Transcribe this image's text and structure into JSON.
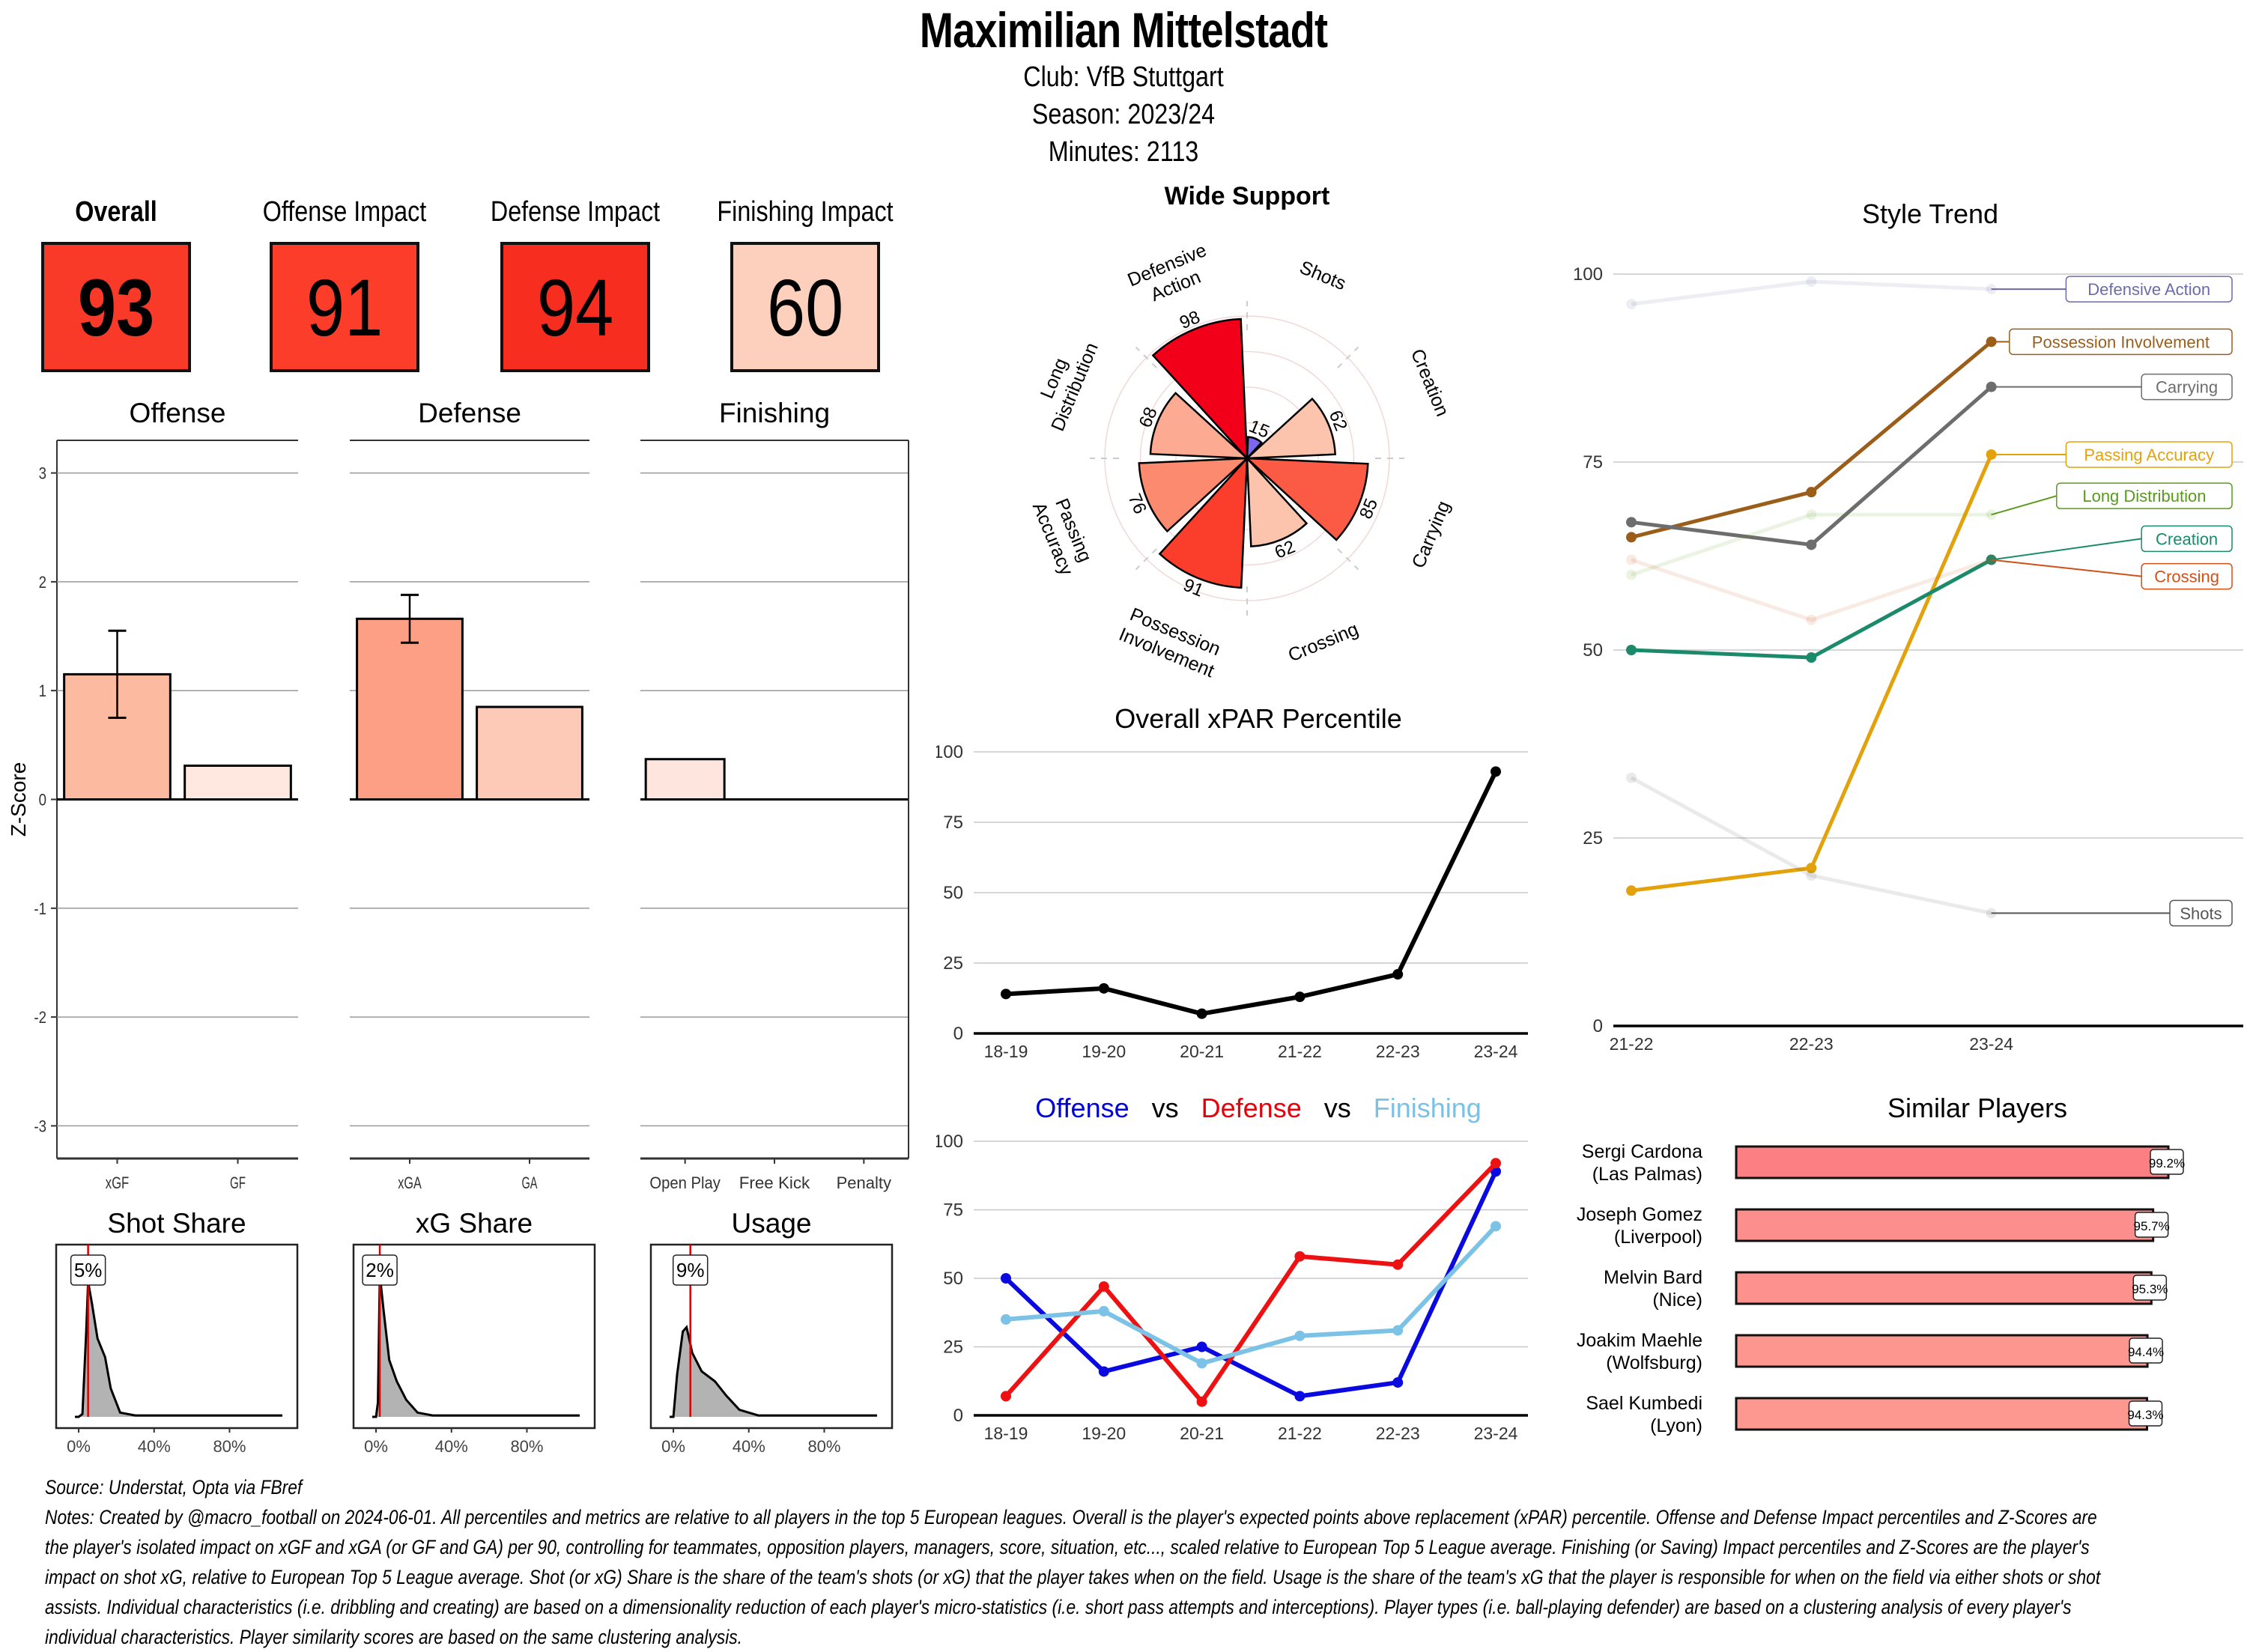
{
  "header": {
    "player_name": "Maximilian Mittelstadt",
    "club_line": "Club:  VfB Stuttgart",
    "season_line": "Season:  2023/24",
    "minutes_line": "Minutes:  2113"
  },
  "kpis": [
    {
      "label": "Overall",
      "value": "93",
      "color": "#f93a28",
      "bold": true
    },
    {
      "label": "Offense Impact",
      "value": "91",
      "color": "#fb3d2a",
      "bold": false
    },
    {
      "label": "Defense Impact",
      "value": "94",
      "color": "#f72d20",
      "bold": false
    },
    {
      "label": "Finishing Impact",
      "value": "60",
      "color": "#fdd0bd",
      "bold": false
    }
  ],
  "chart_data": [
    {
      "id": "zscore",
      "type": "bar",
      "ylabel": "Z-Score",
      "ylim": [
        -3.3,
        3.3
      ],
      "yticks": [
        "3",
        "2",
        "1",
        "0",
        "-1",
        "-2",
        "-3"
      ],
      "ytick_values": [
        3,
        2,
        1,
        0,
        -1,
        -2,
        -3
      ],
      "grid": true,
      "facets": [
        {
          "title": "Offense",
          "categories": [
            "xGF",
            "GF"
          ],
          "values": [
            1.15,
            0.31
          ],
          "colors": [
            "#fcbba1",
            "#fee8e0"
          ],
          "error": [
            [
              0.75,
              1.55
            ],
            null
          ]
        },
        {
          "title": "Defense",
          "categories": [
            "xGA",
            "GA"
          ],
          "values": [
            1.66,
            0.85
          ],
          "colors": [
            "#fc9f85",
            "#fdcab8"
          ],
          "error": [
            [
              1.44,
              1.88
            ],
            null
          ]
        },
        {
          "title": "Finishing",
          "categories": [
            "Open Play",
            "Free Kick",
            "Penalty"
          ],
          "values": [
            0.37,
            0.0,
            0.0
          ],
          "colors": [
            "#fee5de",
            "#fff5f0",
            "#fff5f0"
          ],
          "error": [
            null,
            null,
            null
          ]
        }
      ]
    },
    {
      "id": "share-densities",
      "type": "area",
      "xticks": [
        "0%",
        "40%",
        "80%"
      ],
      "panels": [
        {
          "title": "Shot Share",
          "player_value_pct": 5,
          "label": "5%"
        },
        {
          "title": "xG Share",
          "player_value_pct": 2,
          "label": "2%"
        },
        {
          "title": "Usage",
          "player_value_pct": 9,
          "label": "9%"
        }
      ]
    },
    {
      "id": "wide-support",
      "type": "bar",
      "subtype": "polar",
      "title": "Wide Support",
      "categories": [
        "Shots",
        "Creation",
        "Carrying",
        "Crossing",
        "Possession Involvement",
        "Passing Accuracy",
        "Long Distribution",
        "Defensive Action"
      ],
      "label_lines": [
        [
          "Shots"
        ],
        [
          "Creation"
        ],
        [
          "Carrying"
        ],
        [
          "Crossing"
        ],
        [
          "Possession",
          "Involvement"
        ],
        [
          "Passing",
          "Accuracy"
        ],
        [
          "Long",
          "Distribution"
        ],
        [
          "Defensive",
          "Action"
        ]
      ],
      "values": [
        15,
        62,
        85,
        62,
        91,
        76,
        68,
        98
      ],
      "colors": [
        "#7b68ee",
        "#fcc3ad",
        "#fb5a44",
        "#fcc3ad",
        "#fb3e2c",
        "#fc8a6f",
        "#fcab92",
        "#f2001a"
      ],
      "ylim": [
        0,
        100
      ]
    },
    {
      "id": "xpar",
      "type": "line",
      "title": "Overall xPAR Percentile",
      "x": [
        "18-19",
        "19-20",
        "20-21",
        "21-22",
        "22-23",
        "23-24"
      ],
      "series": [
        {
          "name": "Overall xPAR Percentile",
          "values": [
            14,
            16,
            7,
            13,
            21,
            93
          ],
          "color": "#000000"
        }
      ],
      "ylim": [
        0,
        100
      ],
      "yticks": [
        0,
        25,
        50,
        75,
        100
      ],
      "grid": true
    },
    {
      "id": "ode",
      "type": "line",
      "title_parts": [
        {
          "text": "Offense",
          "color": "#0000dd"
        },
        {
          "text": "vs",
          "color": "#000000"
        },
        {
          "text": "Defense",
          "color": "#e8000b"
        },
        {
          "text": "vs",
          "color": "#000000"
        },
        {
          "text": "Finishing",
          "color": "#7dc0e6"
        }
      ],
      "x": [
        "18-19",
        "19-20",
        "20-21",
        "21-22",
        "22-23",
        "23-24"
      ],
      "series": [
        {
          "name": "Offense",
          "values": [
            50,
            16,
            25,
            7,
            12,
            89
          ],
          "color": "#0a0ae0"
        },
        {
          "name": "Defense",
          "values": [
            7,
            47,
            5,
            58,
            55,
            92
          ],
          "color": "#ee1111"
        },
        {
          "name": "Finishing",
          "values": [
            35,
            38,
            19,
            29,
            31,
            69
          ],
          "color": "#7cc2e6"
        }
      ],
      "ylim": [
        0,
        100
      ],
      "yticks": [
        0,
        25,
        50,
        75,
        100
      ],
      "grid": true
    },
    {
      "id": "style-trend",
      "type": "line",
      "title": "Style Trend",
      "x": [
        "21-22",
        "22-23",
        "23-24"
      ],
      "series": [
        {
          "name": "Defensive Action",
          "values": [
            96,
            99,
            98
          ],
          "color": "#6b6ba8",
          "faded": true
        },
        {
          "name": "Possession Involvement",
          "values": [
            65,
            71,
            91
          ],
          "color": "#9b5e1a",
          "faded": false
        },
        {
          "name": "Carrying",
          "values": [
            67,
            64,
            85
          ],
          "color": "#6d6d6d",
          "faded": false
        },
        {
          "name": "Passing Accuracy",
          "values": [
            18,
            21,
            76
          ],
          "color": "#e3a20c",
          "faded": false
        },
        {
          "name": "Long Distribution",
          "values": [
            60,
            68,
            68
          ],
          "color": "#5a9a1a",
          "faded": true
        },
        {
          "name": "Creation",
          "values": [
            50,
            49,
            62
          ],
          "color": "#1a8a6a",
          "faded": false
        },
        {
          "name": "Crossing",
          "values": [
            62,
            54,
            62
          ],
          "color": "#d0501a",
          "faded": true
        },
        {
          "name": "Shots",
          "values": [
            33,
            20,
            15
          ],
          "color": "#555555",
          "faded": true
        }
      ],
      "ylim": [
        0,
        100
      ],
      "yticks": [
        0,
        25,
        50,
        75,
        100
      ],
      "grid": true
    },
    {
      "id": "similar-players",
      "type": "bar",
      "orientation": "horizontal",
      "title": "Similar Players",
      "categories": [
        [
          "Sergi Cardona",
          "(Las Palmas)"
        ],
        [
          "Joseph Gomez",
          "(Liverpool)"
        ],
        [
          "Melvin Bard",
          "(Nice)"
        ],
        [
          "Joakim Maehle",
          "(Wolfsburg)"
        ],
        [
          "Sael Kumbedi",
          "(Lyon)"
        ]
      ],
      "values": [
        99.2,
        95.7,
        95.3,
        94.4,
        94.3
      ],
      "labels": [
        "99.2%",
        "95.7%",
        "95.3%",
        "94.4%",
        "94.3%"
      ],
      "colors": [
        "#fc7f84",
        "#fc8f8d",
        "#fc918d",
        "#fc968f",
        "#fc9890"
      ]
    }
  ],
  "footer": {
    "source": "Source: Understat, Opta via FBref",
    "notes": [
      "Notes: Created by @macro_football on 2024-06-01. All percentiles and metrics are relative to all players in the top 5 European leagues. Overall is the player's expected points above replacement (xPAR) percentile. Offense and Defense Impact percentiles and Z-Scores are",
      "the player's isolated impact on xGF and xGA (or GF and GA) per 90, controlling for teammates, opposition players, managers, score, situation, etc..., scaled relative to European Top 5 League average. Finishing (or Saving) Impact percentiles and Z-Scores are the player's",
      "impact on shot xG, relative to European Top 5 League average. Shot (or xG) Share is the share of the team's shots (or xG) that the player takes when on the field. Usage is the share of the team's xG that the player is responsible for when on the field via either shots or shot",
      "assists. Individual characteristics (i.e. dribbling and creating) are based on a dimensionality reduction of each player's micro-statistics (i.e. short pass attempts and interceptions). Player types (i.e. ball-playing defender) are based on a clustering analysis of every player's",
      "individual characteristics. Player similarity scores are based on the same clustering analysis."
    ]
  }
}
